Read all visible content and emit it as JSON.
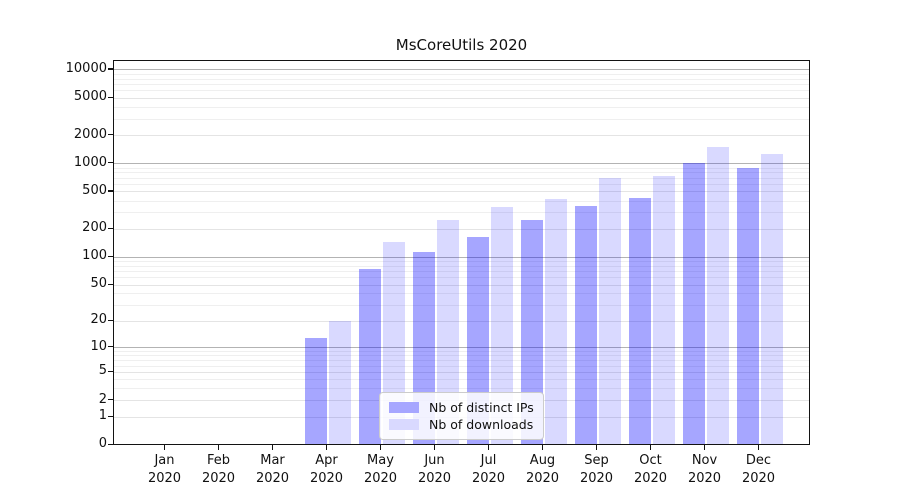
{
  "title": "MsCoreUtils 2020",
  "chart_data": {
    "type": "bar",
    "title": "MsCoreUtils 2020",
    "categories": [
      "Jan 2020",
      "Feb 2020",
      "Mar 2020",
      "Apr 2020",
      "May 2020",
      "Jun 2020",
      "Jul 2020",
      "Aug 2020",
      "Sep 2020",
      "Oct 2020",
      "Nov 2020",
      "Dec 2020"
    ],
    "series": [
      {
        "name": "Nb of distinct IPs",
        "values": [
          0,
          0,
          0,
          13,
          75,
          115,
          165,
          250,
          350,
          430,
          1030,
          905
        ]
      },
      {
        "name": "Nb of downloads",
        "values": [
          0,
          0,
          0,
          20,
          145,
          250,
          345,
          420,
          700,
          745,
          1515,
          1265
        ]
      }
    ],
    "xlabel": "",
    "ylabel": "",
    "yticks": [
      0,
      1,
      2,
      5,
      10,
      20,
      50,
      100,
      200,
      500,
      1000,
      2000,
      5000,
      10000
    ],
    "yscale": "log1p",
    "ylim": [
      0,
      12500
    ],
    "grid": "horizontal, major and minor lines",
    "legend_position": "inside bottom-center"
  },
  "colors": {
    "bar_ips": "rgba(0,0,255,0.35)",
    "bar_downloads": "rgba(0,0,255,0.15)",
    "legend_swatch_ips": "#a6a6ff",
    "legend_swatch_downloads": "#d9d9ff",
    "grid_decade": "#b3b3b3",
    "grid_labeled": "#e4e4e4",
    "grid_minor": "#efefef",
    "axis_line": "#131313",
    "text": "#111111"
  }
}
